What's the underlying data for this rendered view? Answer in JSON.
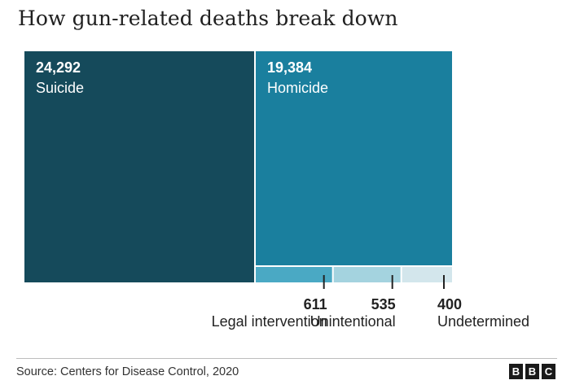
{
  "title": "How gun-related deaths break down",
  "source": "Source: Centers for Disease Control, 2020",
  "logo": {
    "letters": [
      "B",
      "B",
      "C"
    ]
  },
  "colors": {
    "suicide": "#154a5b",
    "homicide": "#1a7f9e",
    "legal_intervention": "#4aa9c4",
    "unintentional": "#a4d3df",
    "undetermined": "#d3e6ec",
    "label_text_light": "#ffffff",
    "label_text_dark": "#222222"
  },
  "chart_data": {
    "type": "treemap",
    "title": "How gun-related deaths break down",
    "unit": "deaths",
    "items": [
      {
        "name": "Suicide",
        "label": "24,292",
        "value": 24292
      },
      {
        "name": "Homicide",
        "label": "19,384",
        "value": 19384
      },
      {
        "name": "Legal intervention",
        "label": "611",
        "value": 611
      },
      {
        "name": "Unintentional",
        "label": "535",
        "value": 535
      },
      {
        "name": "Undetermined",
        "label": "400",
        "value": 400
      }
    ]
  }
}
